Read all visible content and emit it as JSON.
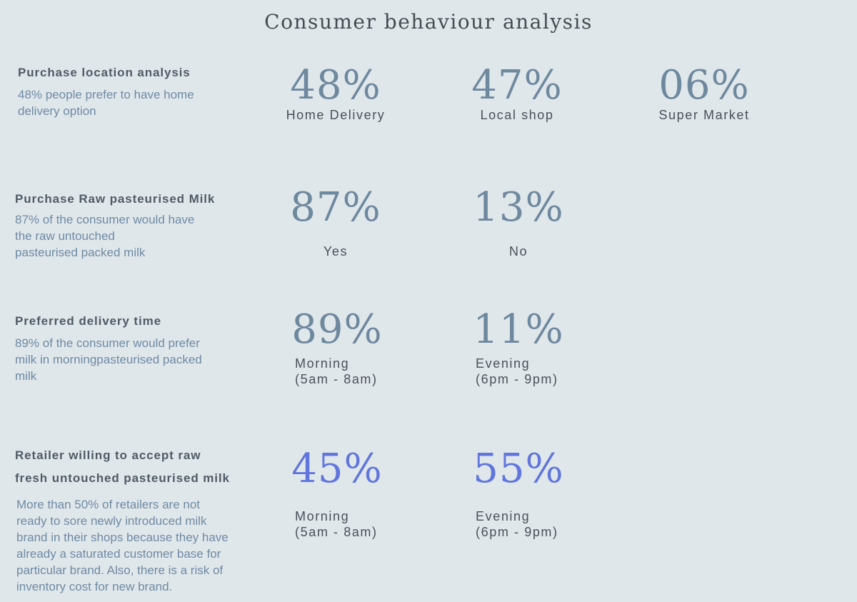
{
  "title": "Consumer behaviour analysis",
  "colors": {
    "background": "#e0e7eb",
    "heading": "#4f5b66",
    "description": "#6e8aa3",
    "stat_value": "#6e889e",
    "stat_value_accent": "#6176dc",
    "stat_label": "#4a5058"
  },
  "sections": [
    {
      "heading": "Purchase location analysis",
      "description_lines": [
        "48% people prefer to have home",
        "delivery option"
      ],
      "stats": [
        {
          "value": "48%",
          "label_lines": [
            "Home Delivery"
          ]
        },
        {
          "value": "47%",
          "label_lines": [
            "Local shop"
          ]
        },
        {
          "value": "06%",
          "label_lines": [
            "Super Market"
          ]
        }
      ]
    },
    {
      "heading": "Purchase Raw pasteurised Milk",
      "description_lines": [
        "87% of the consumer would have",
        "the raw untouched",
        "pasteurised packed milk"
      ],
      "stats": [
        {
          "value": "87%",
          "label_lines": [
            "Yes"
          ]
        },
        {
          "value": "13%",
          "label_lines": [
            "No"
          ]
        }
      ]
    },
    {
      "heading": "Preferred delivery time",
      "description_lines": [
        "89% of the consumer would prefer",
        "milk in morningpasteurised packed",
        "milk"
      ],
      "stats": [
        {
          "value": "89%",
          "label_lines": [
            "Morning",
            "(5am - 8am)"
          ]
        },
        {
          "value": "11%",
          "label_lines": [
            "Evening",
            "(6pm - 9pm)"
          ]
        }
      ]
    },
    {
      "heading_lines": [
        "Retailer willing to accept raw",
        "fresh untouched pasteurised milk"
      ],
      "description_lines": [
        "More than 50% of retailers are not",
        "ready to sore newly introduced milk",
        "brand in their shops because they have",
        "already a saturated customer base for",
        "particular brand. Also, there is a risk of",
        "inventory cost for new brand."
      ],
      "stats": [
        {
          "value": "45%",
          "label_lines": [
            "Morning",
            "(5am - 8am)"
          ]
        },
        {
          "value": "55%",
          "label_lines": [
            "Evening",
            "(6pm - 9pm)"
          ]
        }
      ]
    }
  ]
}
